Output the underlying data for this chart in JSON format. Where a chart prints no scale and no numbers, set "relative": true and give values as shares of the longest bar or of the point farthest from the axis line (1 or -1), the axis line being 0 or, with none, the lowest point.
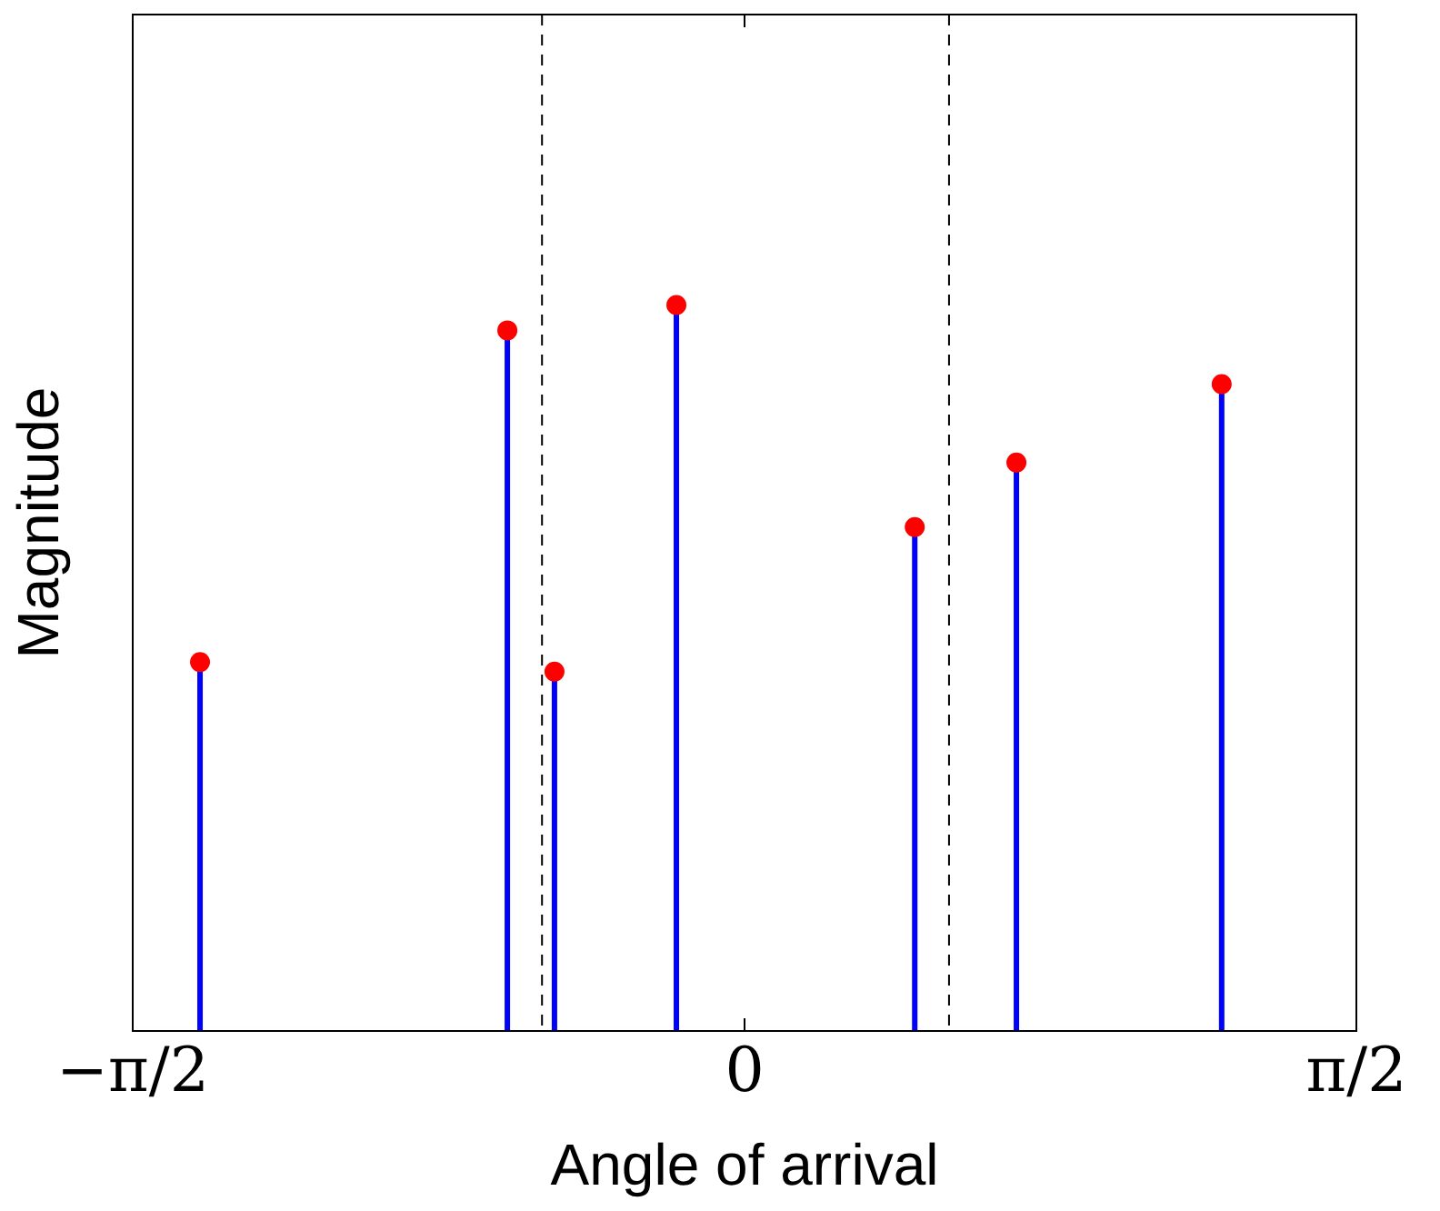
{
  "chart_data": {
    "type": "lollipop",
    "xlabel": "Angle of arrival",
    "ylabel": "Magnitude",
    "relative": true,
    "x": [
      -1.398,
      -0.609,
      -0.488,
      -0.175,
      0.437,
      0.698,
      1.225
    ],
    "series": [
      {
        "color": "#0000ff",
        "colors": [
          "#ff0000",
          "#ff0000",
          "#ff0000",
          "#ff0000",
          "#ff0000",
          "#ff0000",
          "#ff0000"
        ],
        "values": [
          0.508,
          0.965,
          0.495,
          1,
          0.694,
          0.783,
          0.891
        ]
      }
    ],
    "marker": "circle",
    "xlim": [
      -1.5708,
      1.5708
    ],
    "xticks": [
      {
        "value": -1.5708,
        "label": "−π/2"
      },
      0,
      {
        "value": 1.5708,
        "label": "π/2"
      }
    ],
    "ref_lines": [
      {
        "axis": "x",
        "value": -0.52,
        "color": "#000000",
        "line_style": "dashed"
      },
      {
        "axis": "x",
        "value": 0.525,
        "color": "#000000",
        "line_style": "dashed"
      }
    ],
    "grid": false,
    "legend": false
  }
}
